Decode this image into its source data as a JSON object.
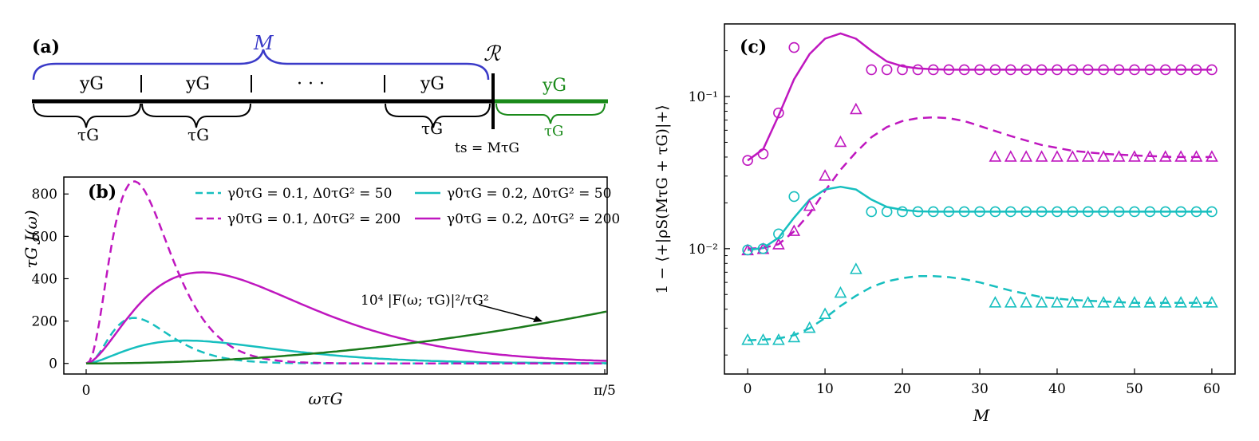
{
  "panel_a": {
    "label": "(a)",
    "brace_top": "M",
    "segment_top": "yG",
    "segment_bottom": "τG",
    "dots": "· · ·",
    "marker_top": "ℛ",
    "marker_bottom": "ts = MτG",
    "green_top": "yG",
    "green_bottom": "τG",
    "colors": {
      "brace": "#3a3ac8",
      "green": "#1a8a1a",
      "black": "#000000"
    }
  },
  "chart_data": [
    {
      "panel": "(b)",
      "type": "line",
      "xlabel": "ωτG",
      "ylabel": "τG J(ω)",
      "xticks": [
        "0",
        "π/5"
      ],
      "yticks": [
        0,
        200,
        400,
        600,
        800
      ],
      "xlim": [
        0,
        0.6283
      ],
      "ylim": [
        -50,
        880
      ],
      "annotation": "10⁴ |F(ω; τG)|²/τG²",
      "legend_placement": "top",
      "series": [
        {
          "name": "γ0τG = 0.1,  Δ0τG² = 50",
          "color": "#17bfbf",
          "style": "dashed",
          "gamma": 0.1,
          "delta": 50
        },
        {
          "name": "γ0τG = 0.2,  Δ0τG² = 50",
          "color": "#17bfbf",
          "style": "solid",
          "gamma": 0.2,
          "delta": 50
        },
        {
          "name": "γ0τG = 0.1,  Δ0τG² = 200",
          "color": "#bf17bf",
          "style": "dashed",
          "gamma": 0.1,
          "delta": 200
        },
        {
          "name": "γ0τG = 0.2,  Δ0τG² = 200",
          "color": "#bf17bf",
          "style": "solid",
          "gamma": 0.2,
          "delta": 200
        },
        {
          "name": "",
          "color": "#1a7a1a",
          "style": "solid",
          "filter": true,
          "end_value": 245
        }
      ]
    },
    {
      "panel": "(c)",
      "type": "scatter",
      "xlabel": "M",
      "ylabel": "1 − ⟨+|ρS(MτG + τG)|+⟩",
      "xticks": [
        0,
        10,
        20,
        30,
        40,
        50,
        60
      ],
      "ytick_labels": [
        "10⁻²",
        "10⁻¹"
      ],
      "xlim": [
        -3,
        63
      ],
      "ylim": [
        0.0015,
        0.3
      ],
      "log_y": true,
      "curves": [
        {
          "color": "#bf17bf",
          "style": "solid",
          "x": [
            0,
            2,
            4,
            6,
            8,
            10,
            12,
            14,
            16,
            18,
            20,
            22,
            24,
            26,
            30,
            60
          ],
          "y": [
            0.038,
            0.045,
            0.075,
            0.13,
            0.19,
            0.24,
            0.26,
            0.24,
            0.2,
            0.17,
            0.158,
            0.153,
            0.151,
            0.15,
            0.15,
            0.15
          ]
        },
        {
          "color": "#bf17bf",
          "style": "dashed",
          "x": [
            0,
            2,
            4,
            6,
            8,
            10,
            12,
            14,
            16,
            18,
            20,
            22,
            24,
            26,
            28,
            30,
            34,
            38,
            42,
            46,
            50,
            55,
            60
          ],
          "y": [
            0.01,
            0.0101,
            0.0107,
            0.013,
            0.017,
            0.024,
            0.033,
            0.043,
            0.054,
            0.063,
            0.069,
            0.072,
            0.073,
            0.072,
            0.069,
            0.064,
            0.055,
            0.048,
            0.044,
            0.042,
            0.041,
            0.04,
            0.04
          ]
        },
        {
          "color": "#17bfbf",
          "style": "solid",
          "x": [
            0,
            2,
            4,
            6,
            8,
            10,
            12,
            14,
            16,
            18,
            20,
            22,
            24,
            30,
            60
          ],
          "y": [
            0.0098,
            0.0101,
            0.0118,
            0.016,
            0.021,
            0.0245,
            0.0255,
            0.0245,
            0.021,
            0.0188,
            0.018,
            0.0176,
            0.0175,
            0.0175,
            0.0175
          ]
        },
        {
          "color": "#17bfbf",
          "style": "dashed",
          "x": [
            0,
            2,
            4,
            6,
            8,
            10,
            12,
            14,
            16,
            18,
            20,
            22,
            24,
            26,
            28,
            30,
            34,
            38,
            42,
            46,
            50,
            55,
            60
          ],
          "y": [
            0.0025,
            0.00252,
            0.00257,
            0.0027,
            0.003,
            0.0035,
            0.0042,
            0.0049,
            0.0056,
            0.0061,
            0.0064,
            0.0066,
            0.0066,
            0.0065,
            0.0063,
            0.006,
            0.0053,
            0.0048,
            0.0046,
            0.0045,
            0.0044,
            0.0044,
            0.0044
          ]
        }
      ],
      "points": [
        {
          "marker": "circle",
          "color": "#bf17bf",
          "x": [
            0,
            2,
            4,
            6,
            16,
            18,
            20,
            22,
            24,
            26,
            28,
            30,
            32,
            34,
            36,
            38,
            40,
            42,
            44,
            46,
            48,
            50,
            52,
            54,
            56,
            58,
            60
          ],
          "y": [
            0.038,
            0.042,
            0.078,
            0.21,
            0.15,
            0.15,
            0.15,
            0.15,
            0.15,
            0.15,
            0.15,
            0.15,
            0.15,
            0.15,
            0.15,
            0.15,
            0.15,
            0.15,
            0.15,
            0.15,
            0.15,
            0.15,
            0.15,
            0.15,
            0.15,
            0.15,
            0.15
          ]
        },
        {
          "marker": "triangle",
          "color": "#bf17bf",
          "x": [
            0,
            2,
            4,
            6,
            8,
            10,
            12,
            14,
            32,
            34,
            36,
            38,
            40,
            42,
            44,
            46,
            48,
            50,
            52,
            54,
            56,
            58,
            60
          ],
          "y": [
            0.0097,
            0.0099,
            0.0106,
            0.013,
            0.019,
            0.03,
            0.05,
            0.082,
            0.04,
            0.04,
            0.04,
            0.04,
            0.04,
            0.04,
            0.04,
            0.04,
            0.04,
            0.04,
            0.04,
            0.04,
            0.04,
            0.04,
            0.04
          ]
        },
        {
          "marker": "circle",
          "color": "#17bfbf",
          "x": [
            0,
            2,
            4,
            6,
            16,
            18,
            20,
            22,
            24,
            26,
            28,
            30,
            32,
            34,
            36,
            38,
            40,
            42,
            44,
            46,
            48,
            50,
            52,
            54,
            56,
            58,
            60
          ],
          "y": [
            0.0098,
            0.01,
            0.0125,
            0.022,
            0.0175,
            0.0175,
            0.0175,
            0.0175,
            0.0175,
            0.0175,
            0.0175,
            0.0175,
            0.0175,
            0.0175,
            0.0175,
            0.0175,
            0.0175,
            0.0175,
            0.0175,
            0.0175,
            0.0175,
            0.0175,
            0.0175,
            0.0175,
            0.0175,
            0.0175,
            0.0175
          ]
        },
        {
          "marker": "triangle",
          "color": "#17bfbf",
          "x": [
            0,
            2,
            4,
            6,
            8,
            10,
            12,
            14,
            32,
            34,
            36,
            38,
            40,
            42,
            44,
            46,
            48,
            50,
            52,
            54,
            56,
            58,
            60
          ],
          "y": [
            0.0025,
            0.0025,
            0.0025,
            0.0026,
            0.003,
            0.0037,
            0.0051,
            0.0073,
            0.0044,
            0.0044,
            0.0044,
            0.0044,
            0.0044,
            0.0044,
            0.0044,
            0.0044,
            0.0044,
            0.0044,
            0.0044,
            0.0044,
            0.0044,
            0.0044,
            0.0044
          ]
        }
      ]
    }
  ]
}
